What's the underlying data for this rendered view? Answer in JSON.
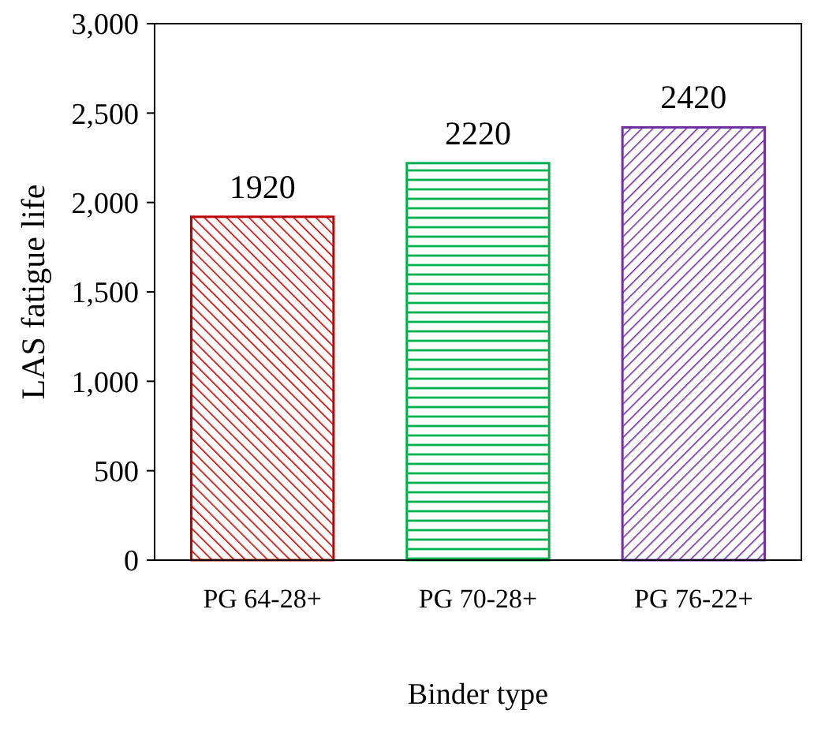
{
  "chart_data": {
    "type": "bar",
    "xlabel": "Binder type",
    "ylabel": "LAS fatigue life",
    "categories": [
      "PG 64-28+",
      "PG 70-28+",
      "PG 76-22+"
    ],
    "values": [
      1920,
      2220,
      2420
    ],
    "colors": [
      "#c00000",
      "#00b050",
      "#7030a0"
    ],
    "ylim": [
      0,
      3000
    ],
    "yticks": [
      0,
      500,
      {
        "value": 1000,
        "label": "1,000"
      },
      {
        "value": 1500,
        "label": "1,500"
      },
      {
        "value": 2000,
        "label": "2,000"
      },
      {
        "value": 2500,
        "label": "2,500"
      },
      {
        "value": 3000,
        "label": "3,000"
      }
    ],
    "grid": false,
    "data_labels": true
  }
}
